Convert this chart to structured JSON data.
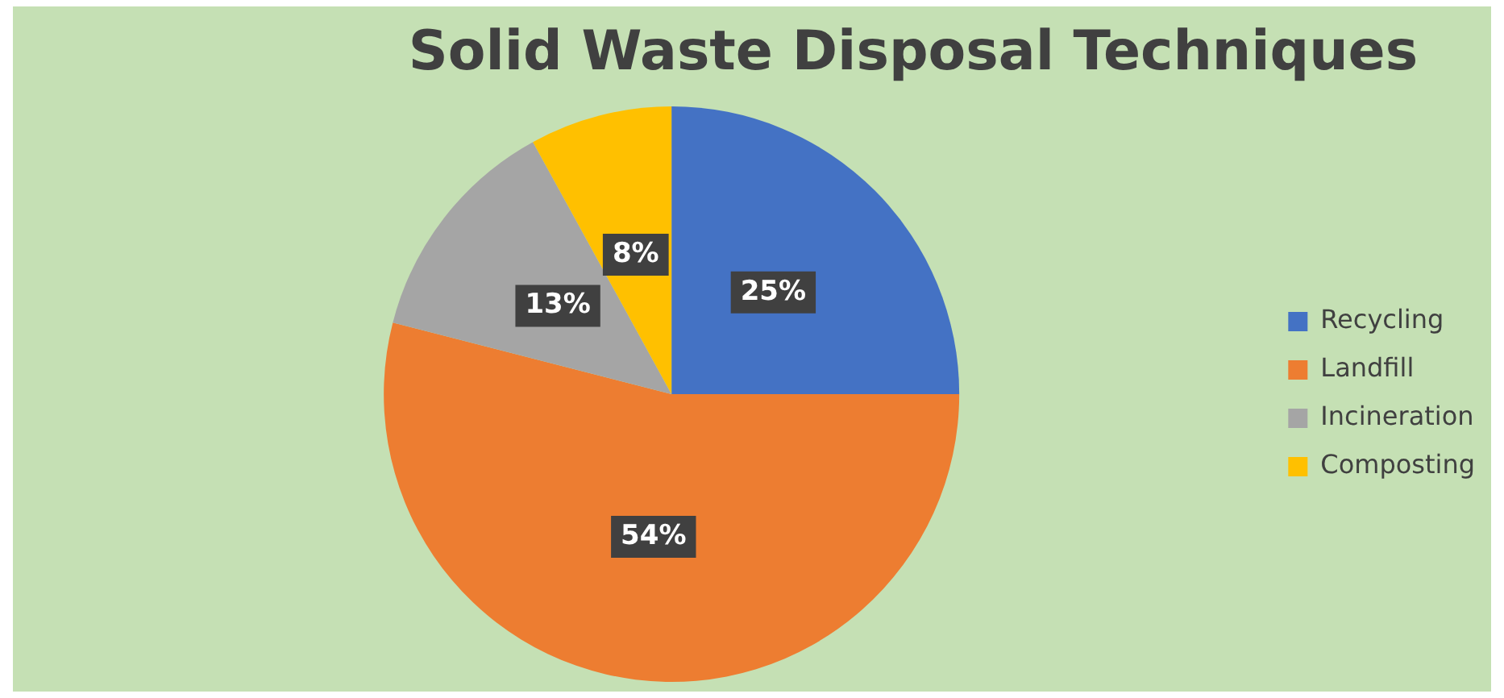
{
  "chart_data": {
    "type": "pie",
    "title": "Solid Waste Disposal Techniques",
    "categories": [
      "Recycling",
      "Landfill",
      "Incineration",
      "Composting"
    ],
    "values": [
      25,
      54,
      13,
      8
    ],
    "colors": [
      "#4472c4",
      "#ed7d31",
      "#a5a5a5",
      "#ffc000"
    ],
    "value_labels": [
      "25%",
      "54%",
      "13%",
      "8%"
    ],
    "legend": "right"
  }
}
